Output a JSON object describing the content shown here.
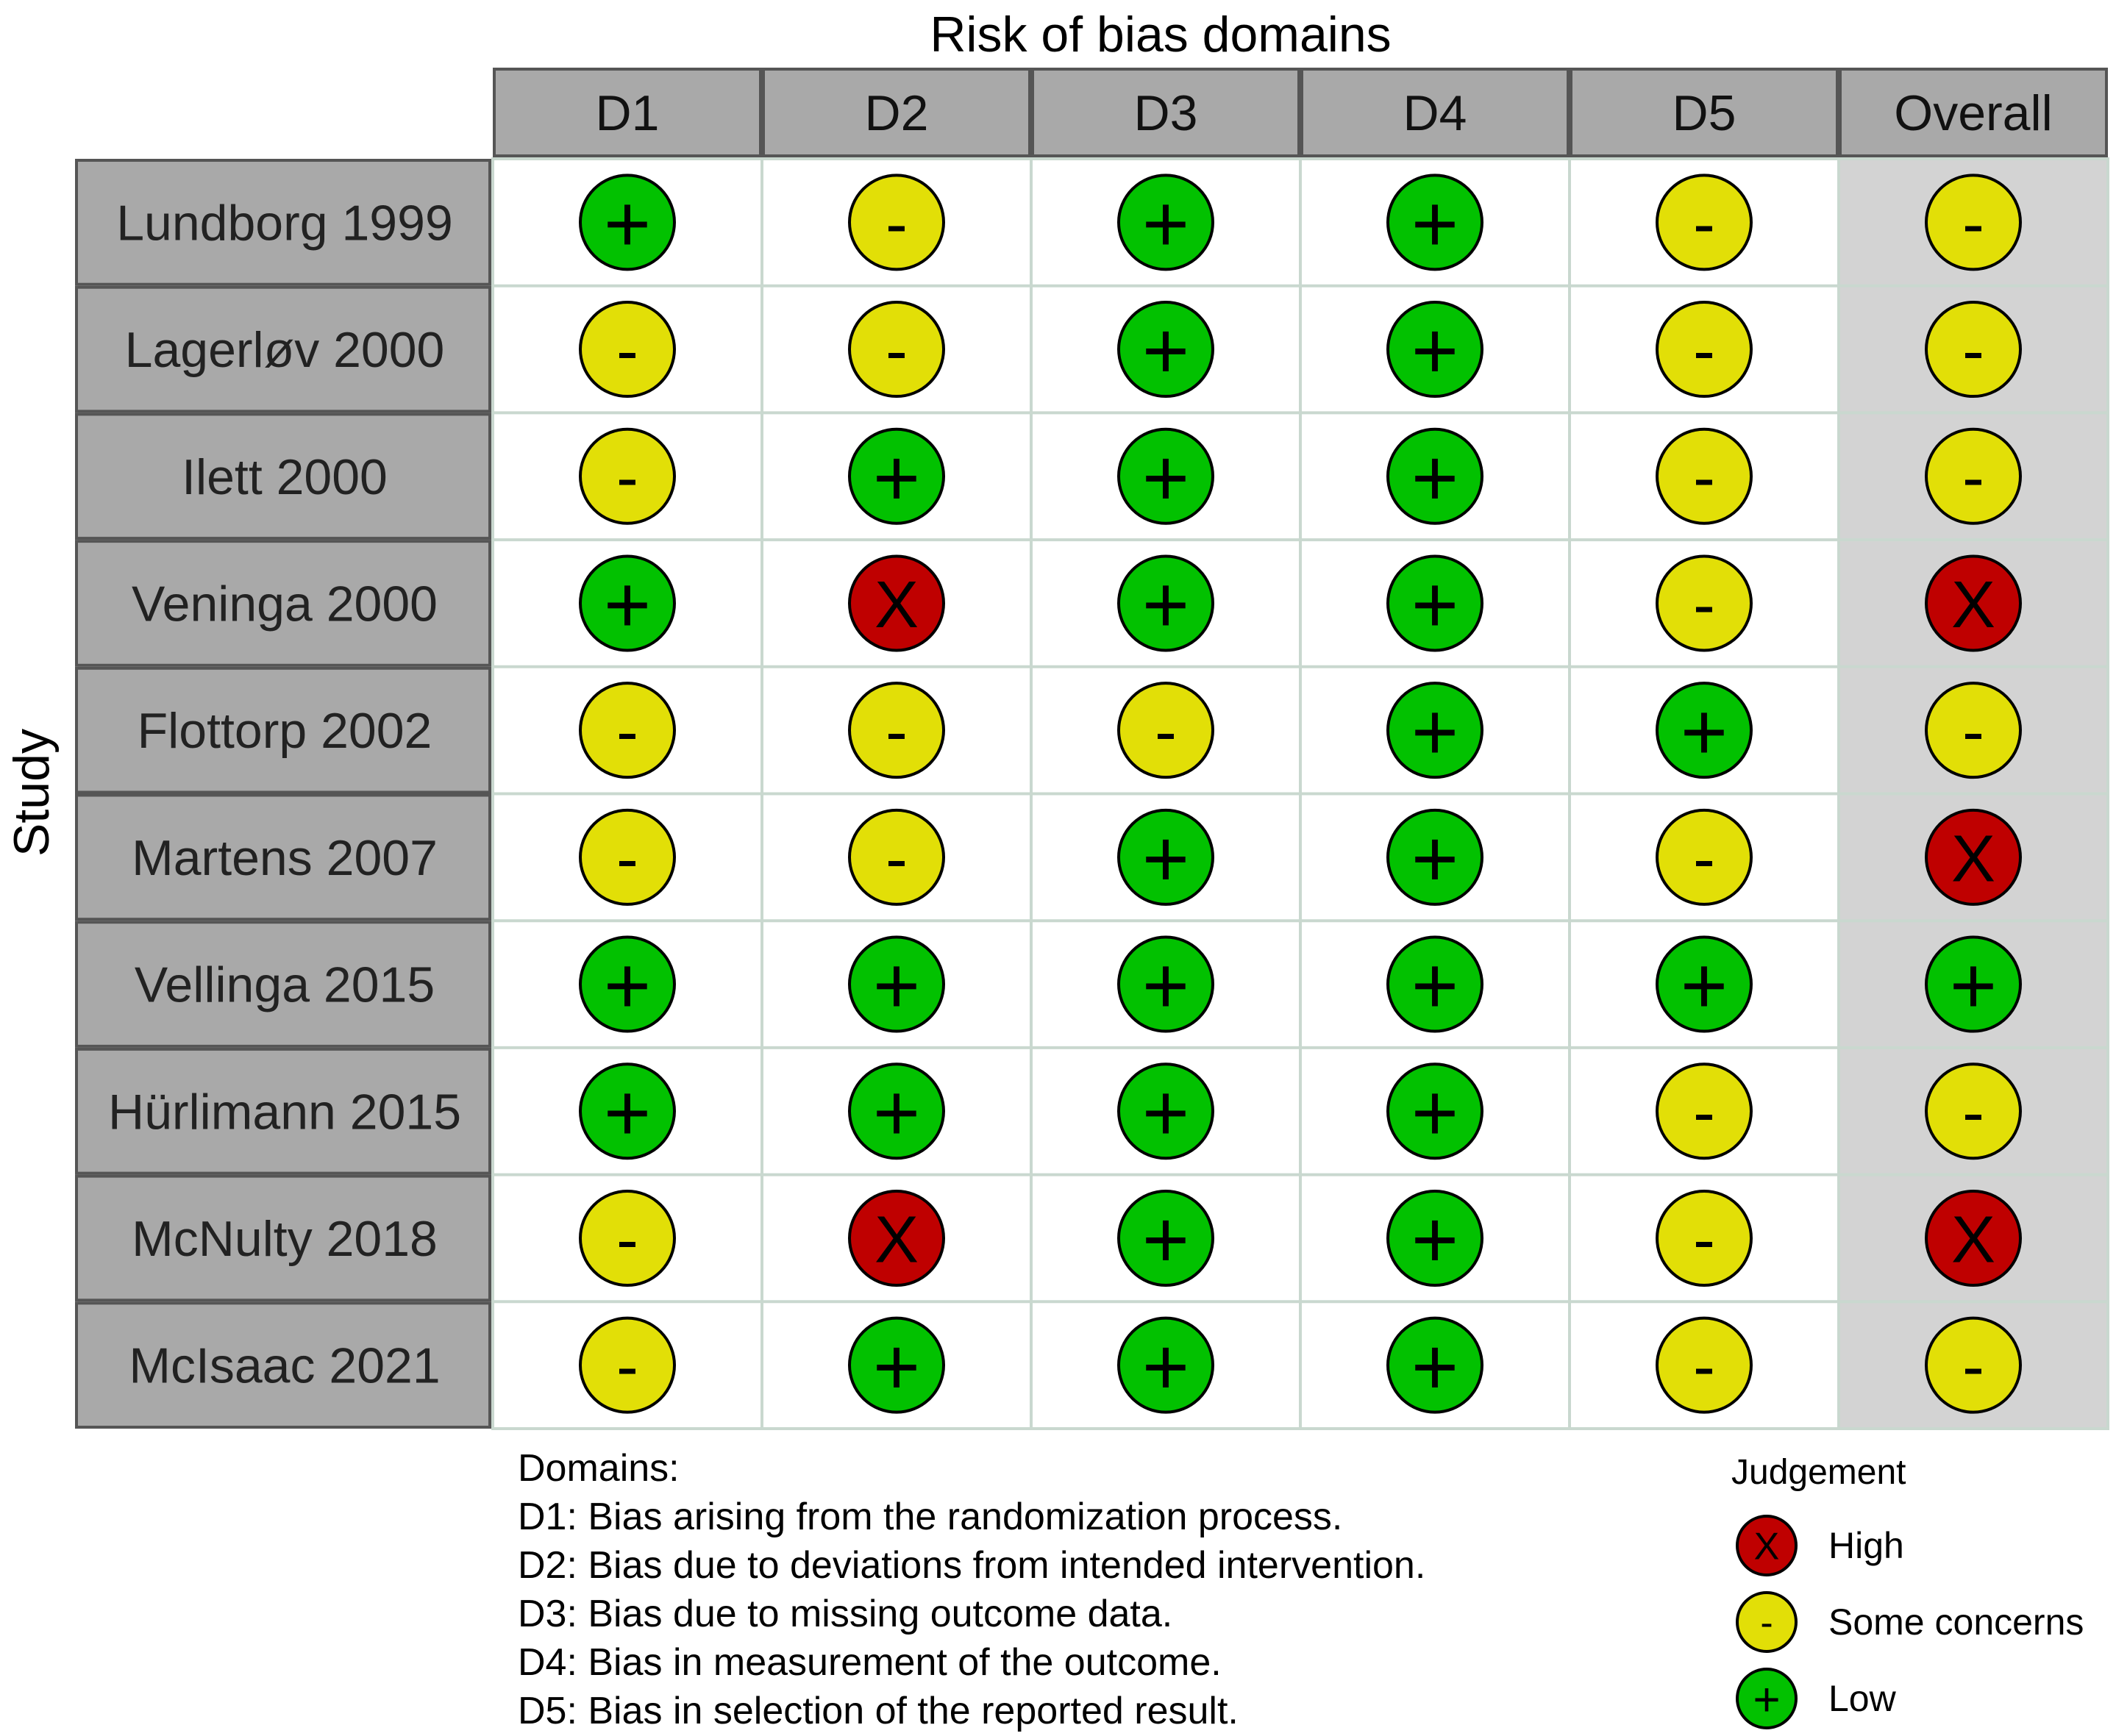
{
  "chart_data": {
    "type": "table",
    "title": "Risk of bias domains",
    "ylabel": "Study",
    "columns": [
      "D1",
      "D2",
      "D3",
      "D4",
      "D5",
      "Overall"
    ],
    "studies": [
      "Lundborg 1999",
      "Lagerløv 2000",
      "Ilett 2000",
      "Veninga 2000",
      "Flottorp 2002",
      "Martens 2007",
      "Vellinga 2015",
      "Hürlimann 2015",
      "McNulty 2018",
      "McIsaac 2021"
    ],
    "judgements": [
      [
        "low",
        "some",
        "low",
        "low",
        "some",
        "some"
      ],
      [
        "some",
        "some",
        "low",
        "low",
        "some",
        "some"
      ],
      [
        "some",
        "low",
        "low",
        "low",
        "some",
        "some"
      ],
      [
        "low",
        "high",
        "low",
        "low",
        "some",
        "high"
      ],
      [
        "some",
        "some",
        "some",
        "low",
        "low",
        "some"
      ],
      [
        "some",
        "some",
        "low",
        "low",
        "some",
        "high"
      ],
      [
        "low",
        "low",
        "low",
        "low",
        "low",
        "low"
      ],
      [
        "low",
        "low",
        "low",
        "low",
        "some",
        "some"
      ],
      [
        "some",
        "high",
        "low",
        "low",
        "some",
        "high"
      ],
      [
        "some",
        "low",
        "low",
        "low",
        "some",
        "some"
      ]
    ],
    "symbols": {
      "high": "X",
      "some": "-",
      "low": "+"
    },
    "colors": {
      "high": "#bf0000",
      "some": "#e2df07",
      "low": "#02c100",
      "header_fill": "#a9a9a9",
      "overall_fill": "#d3d3d3"
    },
    "domains": {
      "heading": "Domains:",
      "items": [
        "D1: Bias arising from the randomization process.",
        "D2: Bias due to deviations from intended intervention.",
        "D3: Bias due to missing outcome data.",
        "D4: Bias in measurement of the outcome.",
        "D5: Bias in selection of the reported result."
      ]
    },
    "legend": {
      "title": "Judgement",
      "placement": "bottom-right",
      "entries": [
        {
          "key": "high",
          "label": "High"
        },
        {
          "key": "some",
          "label": "Some concerns"
        },
        {
          "key": "low",
          "label": "Low"
        }
      ]
    }
  }
}
